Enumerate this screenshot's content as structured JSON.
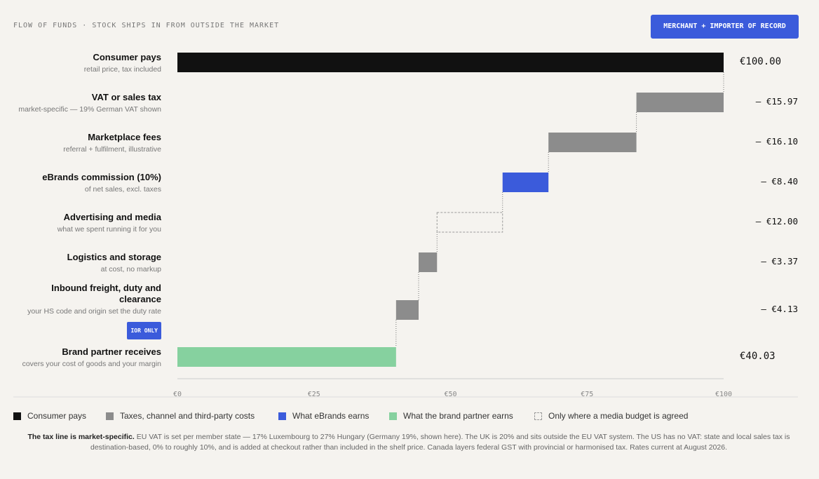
{
  "header": {
    "title": "FLOW OF FUNDS · STOCK SHIPS IN FROM OUTSIDE THE MARKET",
    "button": "MERCHANT + IMPORTER OF RECORD"
  },
  "chart_data": {
    "type": "waterfall",
    "categories": [
      "Consumer pays",
      "VAT or sales tax",
      "Marketplace fees",
      "eBrands commission (10%)",
      "Advertising and media",
      "Logistics and storage",
      "Inbound freight, duty and clearance",
      "Brand partner receives"
    ],
    "sublabels": [
      "retail price, tax included",
      "market-specific — 19% German VAT shown",
      "referral + fulfilment, illustrative",
      "of net sales, excl. taxes",
      "what we spent running it for you",
      "at cost, no markup",
      "your HS code and origin set the duty rate",
      "covers your cost of goods and your margin"
    ],
    "badges": [
      null,
      null,
      null,
      null,
      null,
      null,
      "IOR ONLY",
      null
    ],
    "values": [
      100,
      -15.97,
      -16.1,
      -8.4,
      -12.0,
      -3.37,
      -4.13,
      40.03
    ],
    "value_labels": [
      "€100.00",
      "– €15.97",
      "– €16.10",
      "– €8.40",
      "– €12.00",
      "– €3.37",
      "– €4.13",
      "€40.03"
    ],
    "groups": [
      0,
      1,
      1,
      2,
      4,
      1,
      1,
      3
    ],
    "legend": [
      {
        "name": "Consumer pays",
        "color": "#111111",
        "fill": "solid"
      },
      {
        "name": "Taxes, channel and third-party costs",
        "color": "#8c8c8c",
        "fill": "solid"
      },
      {
        "name": "What eBrands earns",
        "color": "#3b5bdb",
        "fill": "solid"
      },
      {
        "name": "What the brand partner earns",
        "color": "#86d19f",
        "fill": "solid"
      },
      {
        "name": "Only where a media budget is agreed",
        "color": "#9a9a9a",
        "fill": "dashed"
      }
    ],
    "xlim": [
      0,
      100
    ],
    "xticks": [
      {
        "value": 0,
        "label": "€0"
      },
      {
        "value": 25,
        "label": "€25"
      },
      {
        "value": 50,
        "label": "€50"
      },
      {
        "value": 75,
        "label": "€75"
      },
      {
        "value": 100,
        "label": "€100"
      }
    ]
  },
  "footnote": {
    "bold": "The tax line is market-specific.",
    "text": " EU VAT is set per member state — 17% Luxembourg to 27% Hungary (Germany 19%, shown here). The UK is 20% and sits outside the EU VAT system. The US has no VAT: state and local sales tax is destination-based, 0% to roughly 10%, and is added at checkout rather than included in the shelf price. Canada layers federal GST with provincial or harmonised tax. Rates current at August 2026."
  }
}
